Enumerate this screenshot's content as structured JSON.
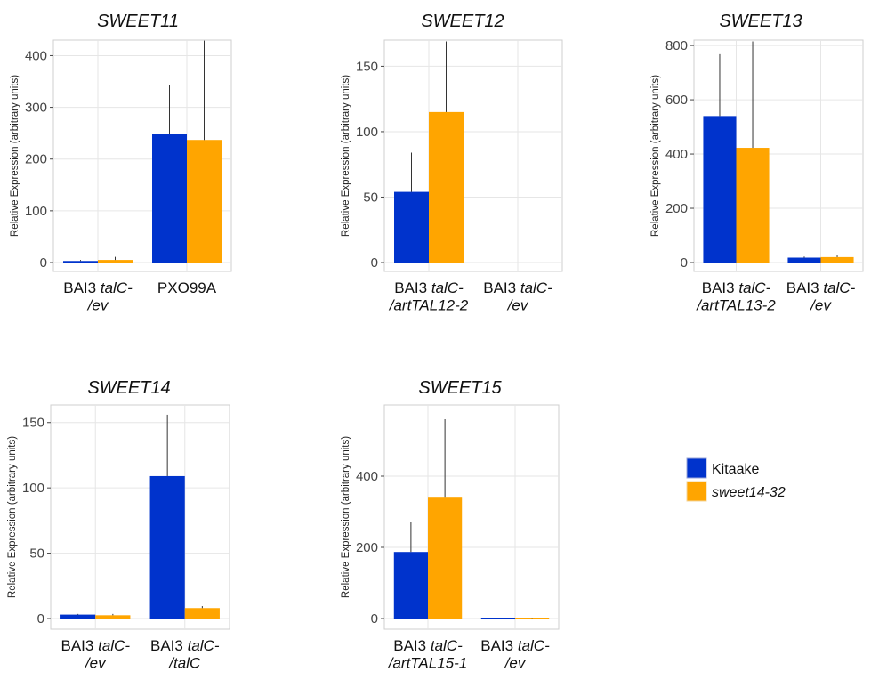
{
  "colors": {
    "kitaake": "#0033cc",
    "sweet": "#ffa500",
    "error": "#333333",
    "grid": "#e6e6e6",
    "axis": "#cfcfcf"
  },
  "legend": {
    "position": "right",
    "items": [
      {
        "label": "Kitaake",
        "style": "normal"
      },
      {
        "label": "sweet14-32",
        "style": "italic"
      }
    ]
  },
  "chart_data": [
    {
      "type": "bar",
      "title": "SWEET11",
      "ylabel": "Relative Expression (arbitrary units)",
      "ylim": [
        0,
        430
      ],
      "yticks": [
        0,
        100,
        200,
        300,
        400
      ],
      "grid": true,
      "categories": [
        {
          "lines": [
            [
              {
                "t": "BAI3 "
              },
              {
                "t": "talC-",
                "i": true
              }
            ],
            [
              {
                "t": "/ev",
                "i": true
              }
            ]
          ]
        },
        {
          "lines": [
            [
              {
                "t": "PXO99A"
              }
            ]
          ]
        }
      ],
      "series": [
        {
          "name": "Kitaake",
          "values": [
            3,
            248
          ],
          "errors": [
            2,
            95
          ]
        },
        {
          "name": "sweet14-32",
          "values": [
            5,
            237
          ],
          "errors": [
            6,
            192
          ]
        }
      ]
    },
    {
      "type": "bar",
      "title": "SWEET12",
      "ylabel": "Relative Expression (arbitrary units)",
      "ylim": [
        0,
        170
      ],
      "yticks": [
        0,
        50,
        100,
        150
      ],
      "grid": true,
      "categories": [
        {
          "lines": [
            [
              {
                "t": "BAI3 "
              },
              {
                "t": "talC-",
                "i": true
              }
            ],
            [
              {
                "t": "/artTAL12-2",
                "i": true
              }
            ]
          ]
        },
        {
          "lines": [
            [
              {
                "t": "BAI3 "
              },
              {
                "t": "talC-",
                "i": true
              }
            ],
            [
              {
                "t": "/ev",
                "i": true
              }
            ]
          ]
        }
      ],
      "series": [
        {
          "name": "Kitaake",
          "values": [
            54,
            0
          ],
          "errors": [
            30,
            0
          ]
        },
        {
          "name": "sweet14-32",
          "values": [
            115,
            0
          ],
          "errors": [
            54,
            0
          ]
        }
      ]
    },
    {
      "type": "bar",
      "title": "SWEET13",
      "ylabel": "Relative Expression (arbitrary units)",
      "ylim": [
        0,
        820
      ],
      "yticks": [
        0,
        200,
        400,
        600,
        800
      ],
      "grid": true,
      "categories": [
        {
          "lines": [
            [
              {
                "t": "BAI3 "
              },
              {
                "t": "talC-",
                "i": true
              }
            ],
            [
              {
                "t": "/artTAL13-2",
                "i": true
              }
            ]
          ]
        },
        {
          "lines": [
            [
              {
                "t": "BAI3 "
              },
              {
                "t": "talC-",
                "i": true
              }
            ],
            [
              {
                "t": "/ev",
                "i": true
              }
            ]
          ]
        }
      ],
      "series": [
        {
          "name": "Kitaake",
          "values": [
            540,
            18
          ],
          "errors": [
            228,
            4
          ]
        },
        {
          "name": "sweet14-32",
          "values": [
            423,
            20
          ],
          "errors": [
            392,
            6
          ]
        }
      ]
    },
    {
      "type": "bar",
      "title": "SWEET14",
      "ylabel": "Relative Expression (arbitrary units)",
      "ylim": [
        0,
        158
      ],
      "yticks": [
        0,
        50,
        100,
        150
      ],
      "grid": true,
      "categories": [
        {
          "lines": [
            [
              {
                "t": "BAI3 "
              },
              {
                "t": "talC-",
                "i": true
              }
            ],
            [
              {
                "t": "/ev",
                "i": true
              }
            ]
          ]
        },
        {
          "lines": [
            [
              {
                "t": "BAI3 "
              },
              {
                "t": "talC-",
                "i": true
              }
            ],
            [
              {
                "t": "/talC",
                "i": true
              }
            ]
          ]
        }
      ],
      "series": [
        {
          "name": "Kitaake",
          "values": [
            3,
            109
          ],
          "errors": [
            0.5,
            47
          ]
        },
        {
          "name": "sweet14-32",
          "values": [
            2.5,
            8
          ],
          "errors": [
            1,
            1.5
          ]
        }
      ]
    },
    {
      "type": "bar",
      "title": "SWEET15",
      "ylabel": "Relative Expression (arbitrary units)",
      "ylim": [
        0,
        580
      ],
      "yticks": [
        0,
        200,
        400
      ],
      "grid": true,
      "categories": [
        {
          "lines": [
            [
              {
                "t": "BAI3 "
              },
              {
                "t": "talC-",
                "i": true
              }
            ],
            [
              {
                "t": "/artTAL15-1",
                "i": true
              }
            ]
          ]
        },
        {
          "lines": [
            [
              {
                "t": "BAI3 "
              },
              {
                "t": "talC-",
                "i": true
              }
            ],
            [
              {
                "t": "/ev",
                "i": true
              }
            ]
          ]
        }
      ],
      "series": [
        {
          "name": "Kitaake",
          "values": [
            187,
            1
          ],
          "errors": [
            83,
            0
          ]
        },
        {
          "name": "sweet14-32",
          "values": [
            342,
            1
          ],
          "errors": [
            218,
            1
          ]
        }
      ]
    }
  ]
}
